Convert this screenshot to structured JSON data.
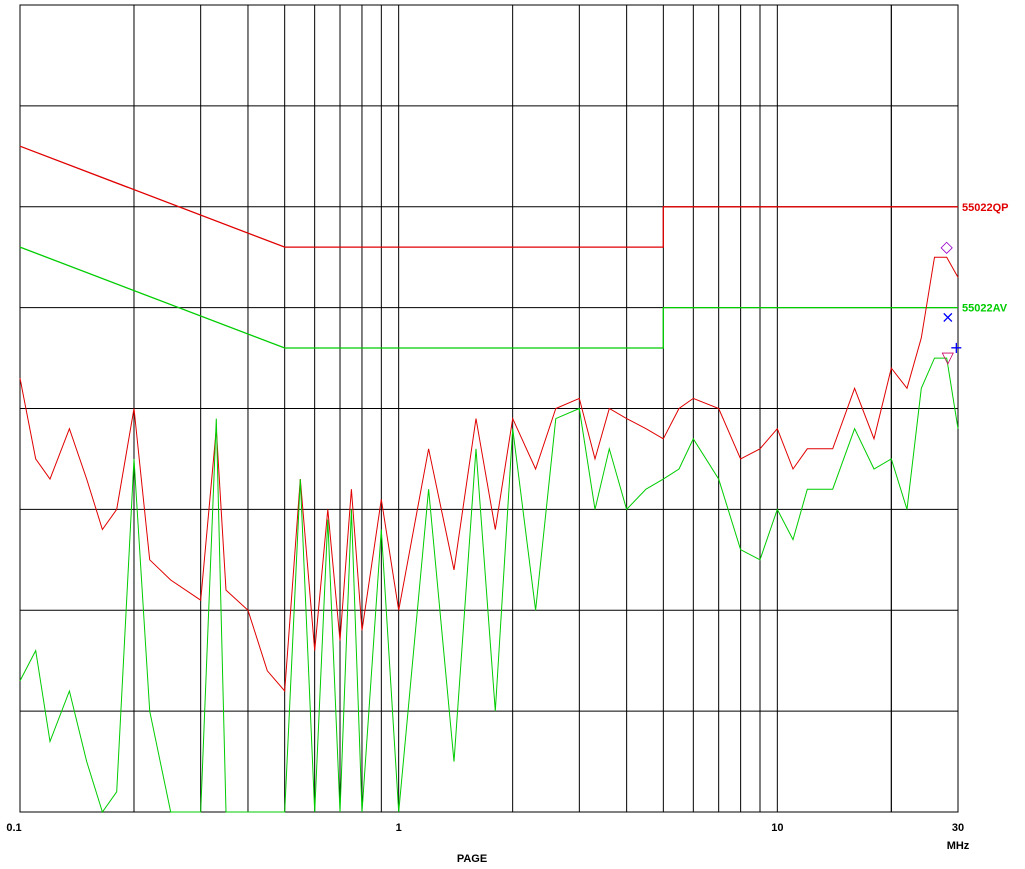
{
  "chart_data": {
    "type": "line",
    "x_scale": "log",
    "x_unit": "MHz",
    "xlim": [
      0.1,
      30
    ],
    "x_tick_labels": [
      "0.1",
      "1",
      "10",
      "30"
    ],
    "x_tick_values": [
      0.1,
      1,
      10,
      30
    ],
    "ylim": [
      0,
      80
    ],
    "y_tick_labels": [],
    "xlabel": "PAGE",
    "grid": true,
    "series": [
      {
        "name": "55022QP",
        "color": "#e00000",
        "kind": "limit",
        "x": [
          0.1,
          0.5,
          0.5,
          5,
          5,
          30
        ],
        "y": [
          66,
          56,
          56,
          56,
          60,
          60
        ]
      },
      {
        "name": "55022AV",
        "color": "#00cc00",
        "kind": "limit",
        "x": [
          0.1,
          0.5,
          0.5,
          5,
          5,
          30
        ],
        "y": [
          56,
          46,
          46,
          46,
          50,
          50
        ]
      },
      {
        "color": "#e00000",
        "kind": "measurement",
        "x": [
          0.1,
          0.11,
          0.12,
          0.135,
          0.15,
          0.165,
          0.18,
          0.2,
          0.22,
          0.25,
          0.3,
          0.33,
          0.35,
          0.4,
          0.45,
          0.5,
          0.55,
          0.6,
          0.65,
          0.7,
          0.75,
          0.8,
          0.9,
          1,
          1.2,
          1.4,
          1.6,
          1.8,
          2,
          2.3,
          2.6,
          3,
          3.3,
          3.6,
          4,
          4.5,
          5,
          5.5,
          6,
          7,
          8,
          9,
          10,
          11,
          12,
          14,
          16,
          18,
          20,
          22,
          24,
          26,
          28,
          30
        ],
        "y": [
          43,
          35,
          33,
          38,
          33,
          28,
          30,
          40,
          25,
          23,
          21,
          38,
          22,
          20,
          14,
          12,
          33,
          16,
          30,
          17,
          32,
          18,
          31,
          20,
          36,
          24,
          39,
          28,
          39,
          34,
          40,
          41,
          35,
          40,
          39,
          38,
          37,
          40,
          41,
          40,
          35,
          36,
          38,
          34,
          36,
          36,
          42,
          37,
          44,
          42,
          47,
          55,
          55,
          53
        ]
      },
      {
        "color": "#00cc00",
        "kind": "measurement",
        "x": [
          0.1,
          0.11,
          0.12,
          0.135,
          0.15,
          0.165,
          0.18,
          0.2,
          0.22,
          0.25,
          0.3,
          0.33,
          0.35,
          0.4,
          0.45,
          0.5,
          0.55,
          0.6,
          0.65,
          0.7,
          0.75,
          0.8,
          0.9,
          1,
          1.2,
          1.4,
          1.6,
          1.8,
          2,
          2.3,
          2.6,
          3,
          3.3,
          3.6,
          4,
          4.5,
          5,
          5.5,
          6,
          7,
          8,
          9,
          10,
          11,
          12,
          14,
          16,
          18,
          20,
          22,
          24,
          26,
          28,
          30
        ],
        "y": [
          13,
          16,
          7,
          12,
          5,
          0,
          2,
          35,
          10,
          0,
          0,
          39,
          0,
          0,
          0,
          0,
          33,
          0,
          29,
          0,
          30,
          0,
          28,
          0,
          32,
          5,
          36,
          10,
          38,
          20,
          39,
          40,
          30,
          36,
          30,
          32,
          33,
          34,
          37,
          33,
          26,
          25,
          30,
          27,
          32,
          32,
          38,
          34,
          35,
          30,
          42,
          45,
          45,
          38
        ]
      }
    ],
    "markers": [
      {
        "symbol": "◇",
        "x": 28,
        "y": 56,
        "color": "#9900cc"
      },
      {
        "symbol": "×",
        "x": 28.2,
        "y": 49,
        "color": "#0000ff"
      },
      {
        "symbol": "+",
        "x": 29.7,
        "y": 46,
        "color": "#0000ff"
      },
      {
        "symbol": "▽",
        "x": 28.2,
        "y": 45,
        "color": "#cc0066"
      }
    ]
  }
}
